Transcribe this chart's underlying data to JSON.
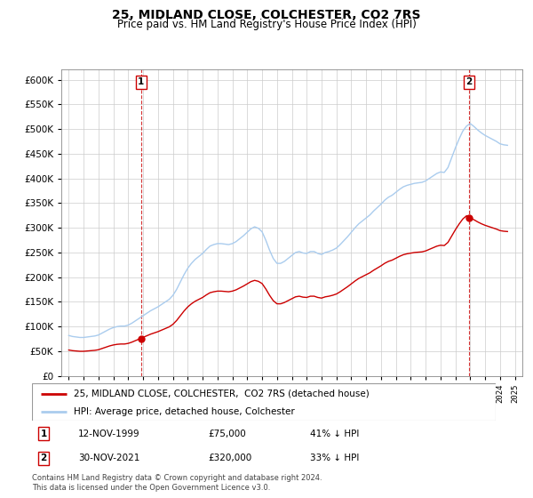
{
  "title": "25, MIDLAND CLOSE, COLCHESTER, CO2 7RS",
  "subtitle": "Price paid vs. HM Land Registry's House Price Index (HPI)",
  "ylim": [
    0,
    620000
  ],
  "yticks": [
    0,
    50000,
    100000,
    150000,
    200000,
    250000,
    300000,
    350000,
    400000,
    450000,
    500000,
    550000,
    600000
  ],
  "line1_color": "#cc0000",
  "line2_color": "#aaccee",
  "annotation_color": "#cc0000",
  "legend_label1": "25, MIDLAND CLOSE, COLCHESTER,  CO2 7RS (detached house)",
  "legend_label2": "HPI: Average price, detached house, Colchester",
  "note1_num": "1",
  "note1_date": "12-NOV-1999",
  "note1_price": "£75,000",
  "note1_hpi": "41% ↓ HPI",
  "note2_num": "2",
  "note2_date": "30-NOV-2021",
  "note2_price": "£320,000",
  "note2_hpi": "33% ↓ HPI",
  "footer": "Contains HM Land Registry data © Crown copyright and database right 2024.\nThis data is licensed under the Open Government Licence v3.0.",
  "hpi_dates": [
    1995.0,
    1995.25,
    1995.5,
    1995.75,
    1996.0,
    1996.25,
    1996.5,
    1996.75,
    1997.0,
    1997.25,
    1997.5,
    1997.75,
    1998.0,
    1998.25,
    1998.5,
    1998.75,
    1999.0,
    1999.25,
    1999.5,
    1999.75,
    2000.0,
    2000.25,
    2000.5,
    2000.75,
    2001.0,
    2001.25,
    2001.5,
    2001.75,
    2002.0,
    2002.25,
    2002.5,
    2002.75,
    2003.0,
    2003.25,
    2003.5,
    2003.75,
    2004.0,
    2004.25,
    2004.5,
    2004.75,
    2005.0,
    2005.25,
    2005.5,
    2005.75,
    2006.0,
    2006.25,
    2006.5,
    2006.75,
    2007.0,
    2007.25,
    2007.5,
    2007.75,
    2008.0,
    2008.25,
    2008.5,
    2008.75,
    2009.0,
    2009.25,
    2009.5,
    2009.75,
    2010.0,
    2010.25,
    2010.5,
    2010.75,
    2011.0,
    2011.25,
    2011.5,
    2011.75,
    2012.0,
    2012.25,
    2012.5,
    2012.75,
    2013.0,
    2013.25,
    2013.5,
    2013.75,
    2014.0,
    2014.25,
    2014.5,
    2014.75,
    2015.0,
    2015.25,
    2015.5,
    2015.75,
    2016.0,
    2016.25,
    2016.5,
    2016.75,
    2017.0,
    2017.25,
    2017.5,
    2017.75,
    2018.0,
    2018.25,
    2018.5,
    2018.75,
    2019.0,
    2019.25,
    2019.5,
    2019.75,
    2020.0,
    2020.25,
    2020.5,
    2020.75,
    2021.0,
    2021.25,
    2021.5,
    2021.75,
    2022.0,
    2022.25,
    2022.5,
    2022.75,
    2023.0,
    2023.25,
    2023.5,
    2023.75,
    2024.0,
    2024.25,
    2024.5
  ],
  "hpi_values": [
    82000,
    80000,
    79000,
    78000,
    78000,
    79000,
    80000,
    81000,
    83000,
    87000,
    91000,
    95000,
    98000,
    100000,
    101000,
    101000,
    103000,
    107000,
    112000,
    117000,
    122000,
    127000,
    132000,
    136000,
    140000,
    145000,
    150000,
    155000,
    163000,
    175000,
    190000,
    205000,
    218000,
    228000,
    236000,
    242000,
    248000,
    256000,
    263000,
    266000,
    268000,
    268000,
    267000,
    266000,
    268000,
    272000,
    278000,
    284000,
    291000,
    298000,
    302000,
    299000,
    292000,
    275000,
    255000,
    238000,
    228000,
    228000,
    232000,
    238000,
    244000,
    250000,
    252000,
    249000,
    248000,
    252000,
    252000,
    248000,
    246000,
    250000,
    252000,
    255000,
    259000,
    266000,
    274000,
    282000,
    291000,
    300000,
    308000,
    314000,
    320000,
    326000,
    334000,
    341000,
    348000,
    356000,
    362000,
    366000,
    372000,
    378000,
    383000,
    386000,
    388000,
    390000,
    391000,
    392000,
    395000,
    400000,
    405000,
    410000,
    413000,
    412000,
    422000,
    442000,
    462000,
    480000,
    496000,
    506000,
    511000,
    505000,
    498000,
    492000,
    487000,
    483000,
    479000,
    475000,
    470000,
    468000,
    467000
  ],
  "sale_dates": [
    1999.87,
    2021.92
  ],
  "sale_prices": [
    75000,
    320000
  ],
  "sale_labels": [
    "1",
    "2"
  ]
}
